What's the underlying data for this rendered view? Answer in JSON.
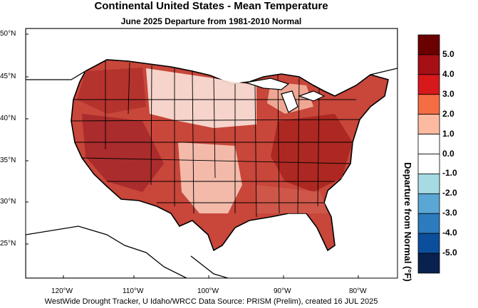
{
  "title": "Continental United States - Mean Temperature",
  "subtitle": "June 2025  Departure from 1981-2010 Normal",
  "footer": "WestWide Drought Tracker, U Idaho/WRCC Data Source: PRISM (Prelim), created 16 JUL 2025",
  "map": {
    "lat_labels": [
      "50°N",
      "45°N",
      "40°N",
      "35°N",
      "30°N",
      "25°N"
    ],
    "lon_labels": [
      "120°W",
      "110°W",
      "100°W",
      "90°W",
      "80°W"
    ],
    "background_color": "#ffffff",
    "land_border_color": "#000000"
  },
  "legend": {
    "title": "Departure from Normal (°F)",
    "labels": [
      "5.0",
      "4.0",
      "3.0",
      "2.0",
      "1.0",
      "0.0",
      "-1.0",
      "-2.0",
      "-3.0",
      "-4.0",
      "-5.0"
    ],
    "colors": [
      "#6b0000",
      "#a50f15",
      "#d7191c",
      "#f46d43",
      "#fcbba1",
      "#ffffff",
      "#ffffff",
      "#a6dbe3",
      "#5aa6d4",
      "#2c7bbf",
      "#0b4f9c",
      "#08214f"
    ]
  }
}
